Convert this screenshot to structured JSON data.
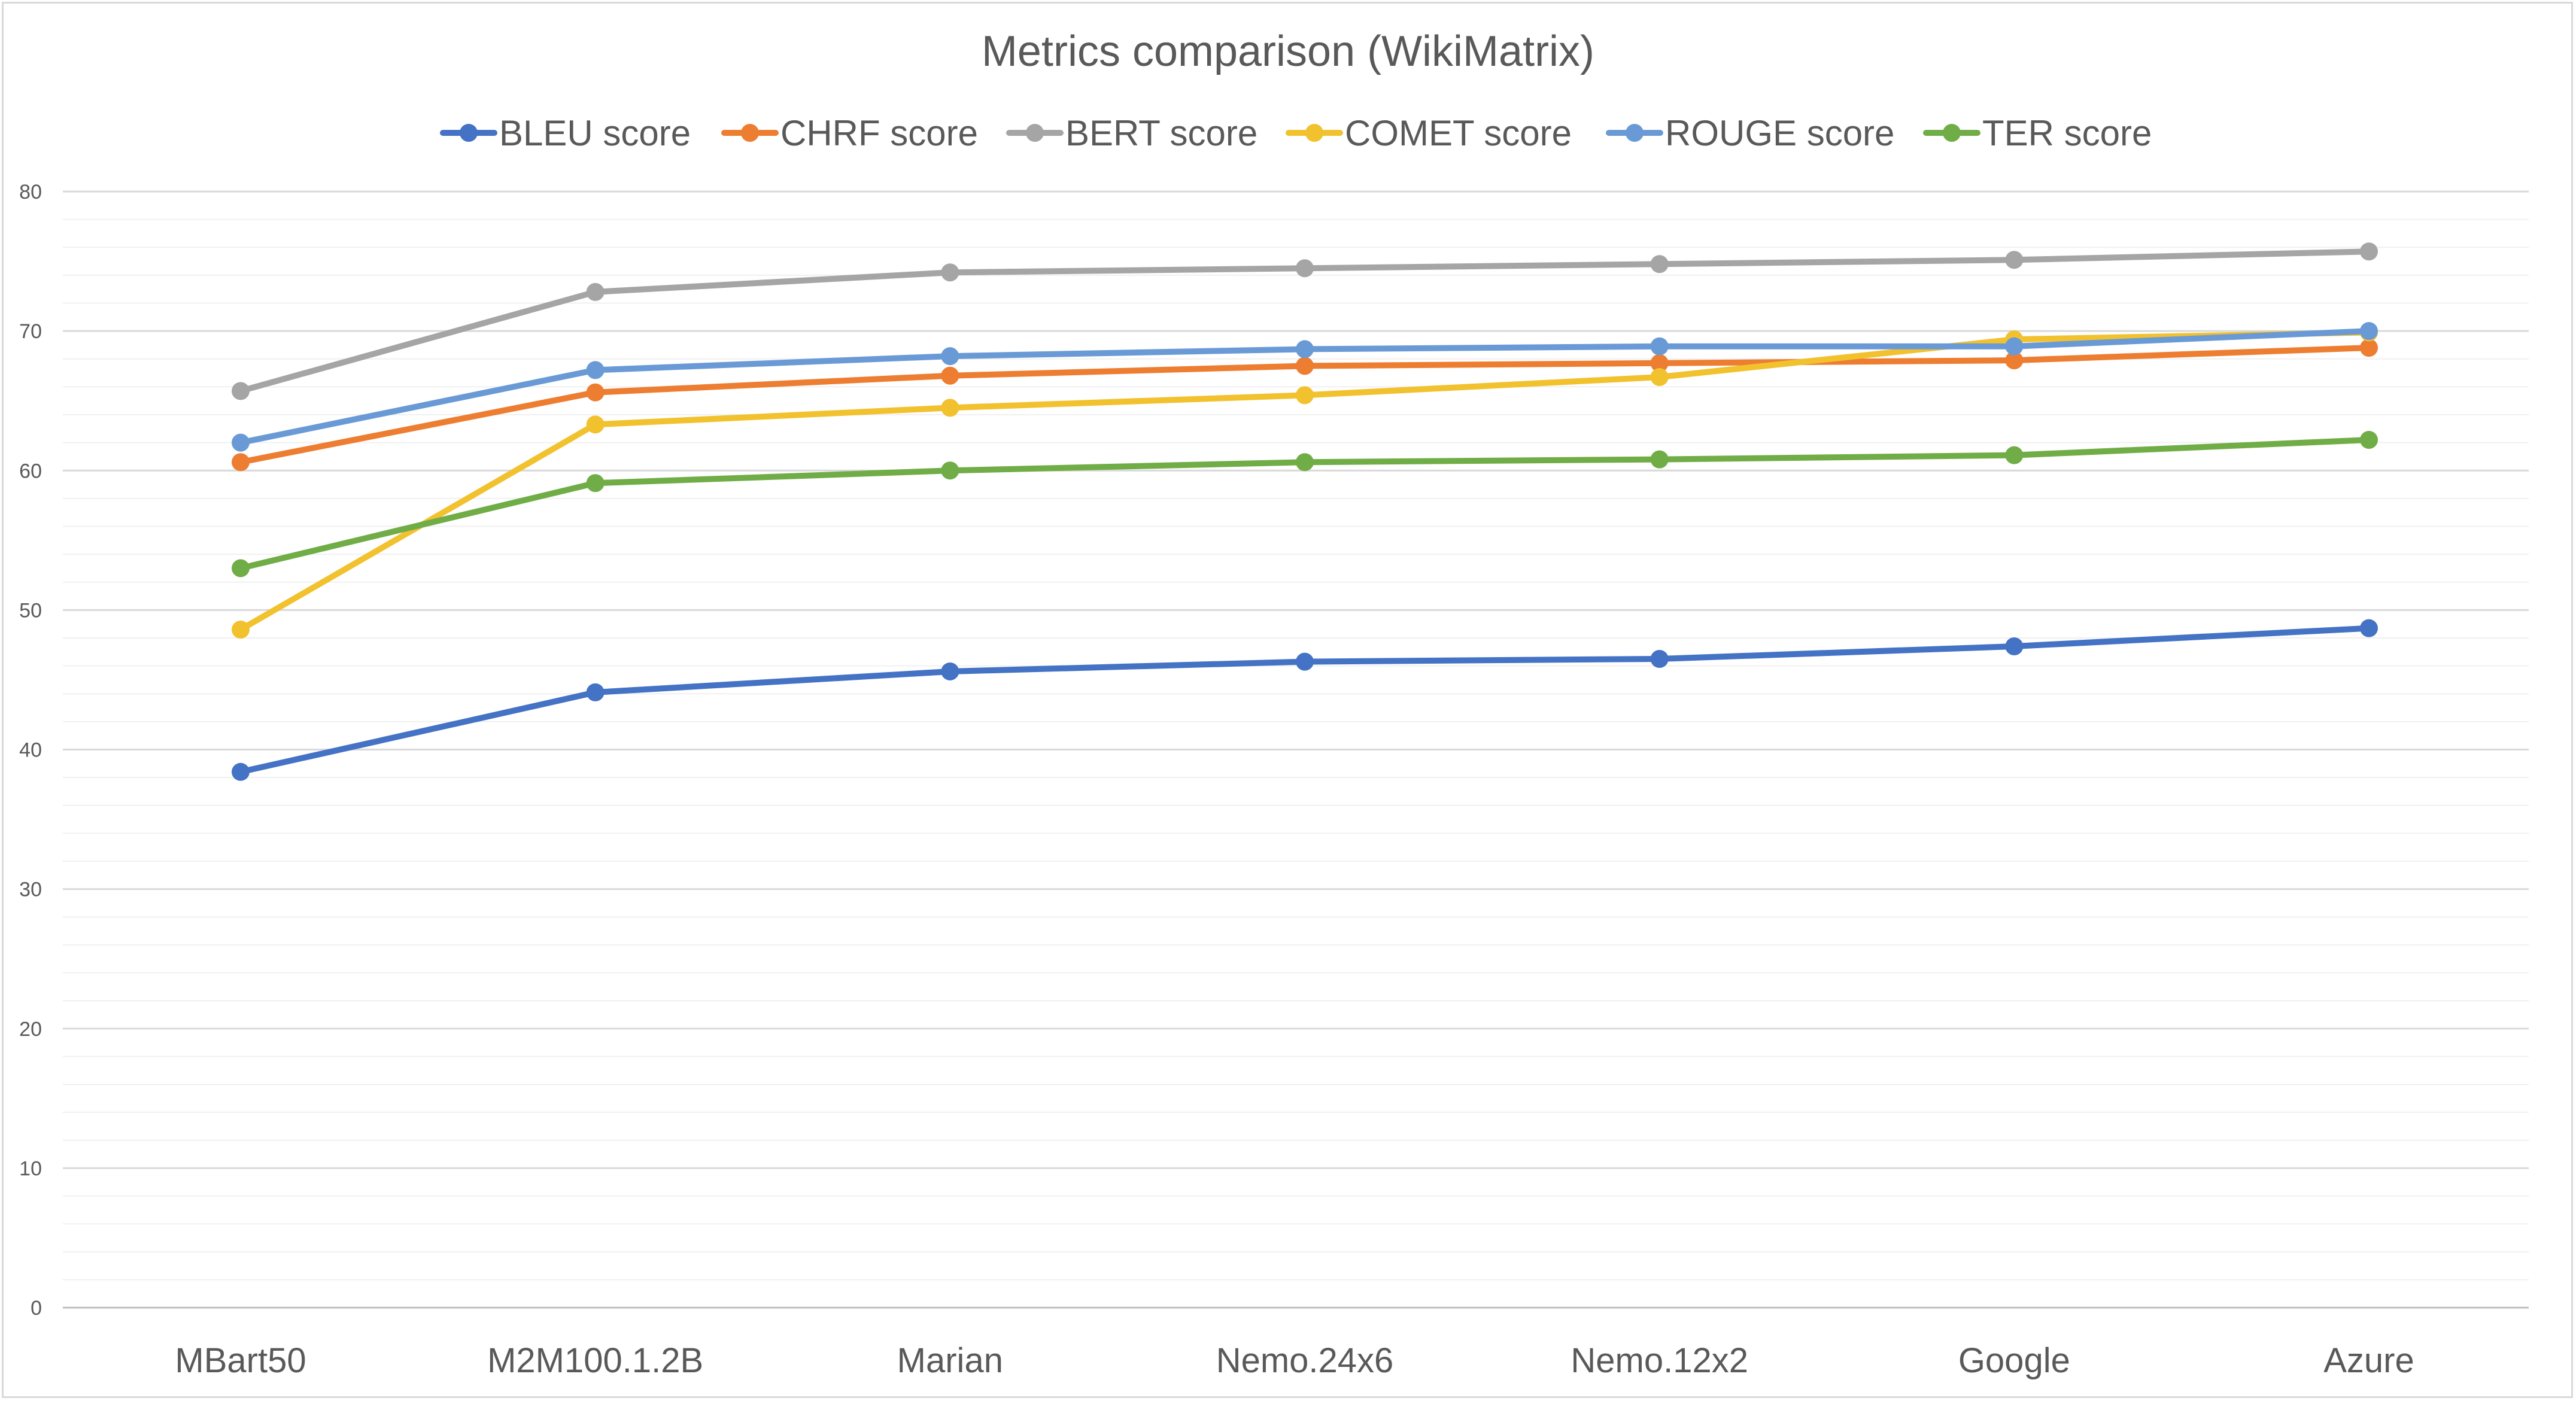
{
  "chart_data": {
    "type": "line",
    "title": "Metrics comparison (WikiMatrix)",
    "categories": [
      "MBart50",
      "M2M100.1.2B",
      "Marian",
      "Nemo.24x6",
      "Nemo.12x2",
      "Google",
      "Azure"
    ],
    "ylim": [
      0,
      80
    ],
    "yticks": [
      0,
      10,
      20,
      30,
      40,
      50,
      60,
      70,
      80
    ],
    "grid": true,
    "legend_position": "top",
    "series": [
      {
        "name": "BLEU score",
        "color": "#4472c4",
        "values": [
          38.4,
          44.1,
          45.6,
          46.3,
          46.5,
          47.4,
          48.7
        ]
      },
      {
        "name": "CHRF score",
        "color": "#ed7d31",
        "values": [
          60.6,
          65.6,
          66.8,
          67.5,
          67.7,
          67.9,
          68.8
        ]
      },
      {
        "name": "BERT score",
        "color": "#a5a5a5",
        "values": [
          65.7,
          72.8,
          74.2,
          74.5,
          74.8,
          75.1,
          75.7
        ]
      },
      {
        "name": "COMET score",
        "color": "#f2c12e",
        "values": [
          48.6,
          63.3,
          64.5,
          65.4,
          66.7,
          69.4,
          69.9
        ]
      },
      {
        "name": "ROUGE score",
        "color": "#6a9ad6",
        "values": [
          62.0,
          67.2,
          68.2,
          68.7,
          68.9,
          68.9,
          70.0
        ]
      },
      {
        "name": "TER score",
        "color": "#70ad47",
        "values": [
          53.0,
          59.1,
          60.0,
          60.6,
          60.8,
          61.1,
          62.2
        ]
      }
    ]
  }
}
